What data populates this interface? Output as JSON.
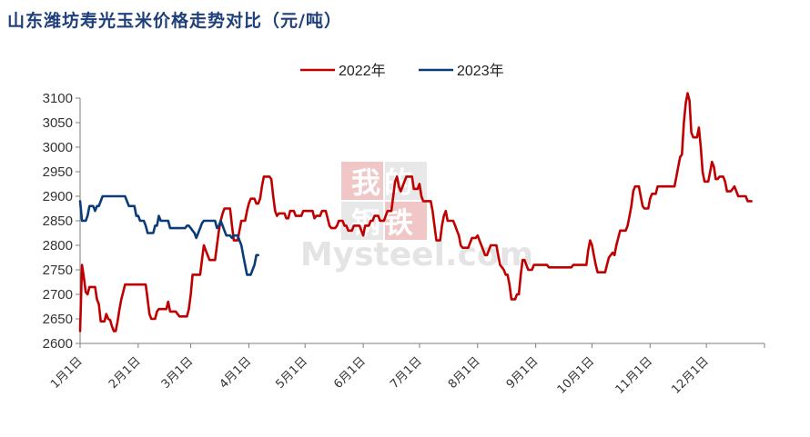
{
  "chart_data": {
    "type": "line",
    "title": "山东潍坊寿光玉米价格走势对比（元/吨）",
    "watermark": [
      "我的",
      "钢铁",
      "Mysteel.com"
    ],
    "ylim": [
      2600,
      3100
    ],
    "yticks": [
      2600,
      2650,
      2700,
      2750,
      2800,
      2850,
      2900,
      2950,
      3000,
      3050,
      3100
    ],
    "xlim": [
      0,
      365
    ],
    "xticks": [
      {
        "label": "1月1日",
        "day": 0
      },
      {
        "label": "2月1日",
        "day": 31
      },
      {
        "label": "3月1日",
        "day": 59
      },
      {
        "label": "4月1日",
        "day": 90
      },
      {
        "label": "5月1日",
        "day": 120
      },
      {
        "label": "6月1日",
        "day": 151
      },
      {
        "label": "7月1日",
        "day": 181
      },
      {
        "label": "8月1日",
        "day": 212
      },
      {
        "label": "9月1日",
        "day": 243
      },
      {
        "label": "10月1日",
        "day": 273
      },
      {
        "label": "11月1日",
        "day": 304
      },
      {
        "label": "12月1日",
        "day": 334
      }
    ],
    "legend_position": "top-center",
    "grid": false,
    "series": [
      {
        "name": "2022年",
        "color": "#c00000",
        "points": [
          [
            0,
            2625
          ],
          [
            1,
            2760
          ],
          [
            2,
            2735
          ],
          [
            3,
            2705
          ],
          [
            4,
            2700
          ],
          [
            5,
            2715
          ],
          [
            8,
            2715
          ],
          [
            9,
            2690
          ],
          [
            10,
            2680
          ],
          [
            11,
            2645
          ],
          [
            13,
            2645
          ],
          [
            14,
            2660
          ],
          [
            15,
            2650
          ],
          [
            16,
            2648
          ],
          [
            17,
            2635
          ],
          [
            18,
            2625
          ],
          [
            19,
            2625
          ],
          [
            20,
            2645
          ],
          [
            21,
            2670
          ],
          [
            22,
            2690
          ],
          [
            23,
            2705
          ],
          [
            24,
            2720
          ],
          [
            35,
            2720
          ],
          [
            36,
            2690
          ],
          [
            37,
            2660
          ],
          [
            38,
            2650
          ],
          [
            40,
            2650
          ],
          [
            41,
            2665
          ],
          [
            42,
            2670
          ],
          [
            46,
            2670
          ],
          [
            47,
            2685
          ],
          [
            48,
            2665
          ],
          [
            51,
            2665
          ],
          [
            52,
            2660
          ],
          [
            53,
            2655
          ],
          [
            57,
            2655
          ],
          [
            58,
            2670
          ],
          [
            59,
            2700
          ],
          [
            60,
            2740
          ],
          [
            64,
            2740
          ],
          [
            65,
            2770
          ],
          [
            66,
            2800
          ],
          [
            67,
            2790
          ],
          [
            69,
            2770
          ],
          [
            72,
            2770
          ],
          [
            73,
            2800
          ],
          [
            74,
            2830
          ],
          [
            75,
            2850
          ],
          [
            76,
            2865
          ],
          [
            77,
            2875
          ],
          [
            80,
            2875
          ],
          [
            81,
            2840
          ],
          [
            82,
            2810
          ],
          [
            84,
            2810
          ],
          [
            85,
            2830
          ],
          [
            86,
            2850
          ],
          [
            88,
            2850
          ],
          [
            89,
            2870
          ],
          [
            90,
            2885
          ],
          [
            91,
            2895
          ],
          [
            93,
            2895
          ],
          [
            94,
            2885
          ],
          [
            95,
            2885
          ],
          [
            96,
            2895
          ],
          [
            97,
            2920
          ],
          [
            98,
            2940
          ],
          [
            101,
            2940
          ],
          [
            102,
            2935
          ],
          [
            103,
            2900
          ],
          [
            104,
            2870
          ],
          [
            105,
            2860
          ],
          [
            106,
            2865
          ],
          [
            109,
            2865
          ],
          [
            110,
            2855
          ],
          [
            111,
            2855
          ],
          [
            112,
            2870
          ],
          [
            114,
            2870
          ],
          [
            115,
            2860
          ],
          [
            118,
            2860
          ],
          [
            119,
            2870
          ],
          [
            124,
            2870
          ],
          [
            125,
            2855
          ],
          [
            126,
            2860
          ],
          [
            128,
            2860
          ],
          [
            129,
            2870
          ],
          [
            131,
            2870
          ],
          [
            132,
            2855
          ],
          [
            133,
            2840
          ],
          [
            134,
            2835
          ],
          [
            136,
            2835
          ],
          [
            137,
            2840
          ],
          [
            138,
            2850
          ],
          [
            140,
            2850
          ],
          [
            141,
            2840
          ],
          [
            142,
            2840
          ],
          [
            143,
            2830
          ],
          [
            145,
            2830
          ],
          [
            146,
            2840
          ],
          [
            149,
            2840
          ],
          [
            150,
            2830
          ],
          [
            151,
            2820
          ],
          [
            152,
            2840
          ],
          [
            154,
            2840
          ],
          [
            155,
            2850
          ],
          [
            156,
            2850
          ],
          [
            157,
            2860
          ],
          [
            159,
            2860
          ],
          [
            160,
            2850
          ],
          [
            162,
            2850
          ],
          [
            163,
            2860
          ],
          [
            164,
            2870
          ],
          [
            166,
            2870
          ],
          [
            167,
            2900
          ],
          [
            168,
            2930
          ],
          [
            169,
            2940
          ],
          [
            170,
            2920
          ],
          [
            171,
            2910
          ],
          [
            172,
            2920
          ],
          [
            173,
            2930
          ],
          [
            174,
            2940
          ],
          [
            177,
            2940
          ],
          [
            178,
            2915
          ],
          [
            180,
            2915
          ],
          [
            181,
            2925
          ],
          [
            182,
            2900
          ],
          [
            183,
            2890
          ],
          [
            187,
            2890
          ],
          [
            188,
            2870
          ],
          [
            189,
            2840
          ],
          [
            190,
            2810
          ],
          [
            192,
            2810
          ],
          [
            193,
            2840
          ],
          [
            194,
            2860
          ],
          [
            195,
            2870
          ],
          [
            196,
            2850
          ],
          [
            199,
            2850
          ],
          [
            200,
            2840
          ],
          [
            201,
            2830
          ],
          [
            202,
            2820
          ],
          [
            203,
            2800
          ],
          [
            204,
            2795
          ],
          [
            207,
            2795
          ],
          [
            208,
            2805
          ],
          [
            209,
            2815
          ],
          [
            211,
            2815
          ],
          [
            212,
            2820
          ],
          [
            213,
            2810
          ],
          [
            214,
            2800
          ],
          [
            215,
            2790
          ],
          [
            216,
            2780
          ],
          [
            217,
            2780
          ],
          [
            218,
            2790
          ],
          [
            219,
            2800
          ],
          [
            222,
            2800
          ],
          [
            223,
            2780
          ],
          [
            224,
            2760
          ],
          [
            225,
            2755
          ],
          [
            226,
            2750
          ],
          [
            227,
            2740
          ],
          [
            228,
            2740
          ],
          [
            229,
            2720
          ],
          [
            230,
            2690
          ],
          [
            232,
            2690
          ],
          [
            233,
            2700
          ],
          [
            234,
            2700
          ],
          [
            235,
            2740
          ],
          [
            236,
            2770
          ],
          [
            237,
            2770
          ],
          [
            238,
            2760
          ],
          [
            239,
            2750
          ],
          [
            241,
            2750
          ],
          [
            242,
            2760
          ],
          [
            249,
            2760
          ],
          [
            250,
            2755
          ],
          [
            262,
            2755
          ],
          [
            263,
            2760
          ],
          [
            270,
            2760
          ],
          [
            271,
            2790
          ],
          [
            272,
            2810
          ],
          [
            273,
            2800
          ],
          [
            274,
            2780
          ],
          [
            275,
            2760
          ],
          [
            276,
            2745
          ],
          [
            280,
            2745
          ],
          [
            281,
            2760
          ],
          [
            282,
            2775
          ],
          [
            284,
            2785
          ],
          [
            285,
            2780
          ],
          [
            286,
            2800
          ],
          [
            287,
            2815
          ],
          [
            288,
            2830
          ],
          [
            291,
            2830
          ],
          [
            292,
            2840
          ],
          [
            293,
            2860
          ],
          [
            294,
            2880
          ],
          [
            295,
            2910
          ],
          [
            296,
            2920
          ],
          [
            298,
            2920
          ],
          [
            299,
            2900
          ],
          [
            300,
            2880
          ],
          [
            301,
            2875
          ],
          [
            303,
            2875
          ],
          [
            304,
            2895
          ],
          [
            305,
            2905
          ],
          [
            307,
            2905
          ],
          [
            308,
            2920
          ],
          [
            317,
            2920
          ],
          [
            318,
            2940
          ],
          [
            319,
            2960
          ],
          [
            320,
            2980
          ],
          [
            321,
            2985
          ],
          [
            322,
            3050
          ],
          [
            323,
            3090
          ],
          [
            324,
            3110
          ],
          [
            325,
            3095
          ],
          [
            326,
            3030
          ],
          [
            327,
            3020
          ],
          [
            329,
            3020
          ],
          [
            330,
            3040
          ],
          [
            331,
            3000
          ],
          [
            332,
            2950
          ],
          [
            333,
            2930
          ],
          [
            335,
            2930
          ],
          [
            336,
            2950
          ],
          [
            337,
            2970
          ],
          [
            338,
            2960
          ],
          [
            339,
            2935
          ],
          [
            340,
            2935
          ],
          [
            341,
            2940
          ],
          [
            343,
            2940
          ],
          [
            344,
            2930
          ],
          [
            345,
            2910
          ],
          [
            347,
            2910
          ],
          [
            348,
            2915
          ],
          [
            349,
            2920
          ],
          [
            350,
            2910
          ],
          [
            351,
            2900
          ],
          [
            355,
            2900
          ],
          [
            356,
            2890
          ],
          [
            358,
            2890
          ]
        ]
      },
      {
        "name": "2023年",
        "color": "#0c3c78",
        "points": [
          [
            0,
            2890
          ],
          [
            1,
            2850
          ],
          [
            3,
            2850
          ],
          [
            4,
            2860
          ],
          [
            5,
            2880
          ],
          [
            7,
            2880
          ],
          [
            8,
            2870
          ],
          [
            9,
            2880
          ],
          [
            10,
            2880
          ],
          [
            11,
            2890
          ],
          [
            12,
            2900
          ],
          [
            24,
            2900
          ],
          [
            25,
            2890
          ],
          [
            26,
            2880
          ],
          [
            29,
            2880
          ],
          [
            30,
            2860
          ],
          [
            31,
            2860
          ],
          [
            32,
            2850
          ],
          [
            34,
            2850
          ],
          [
            35,
            2840
          ],
          [
            36,
            2825
          ],
          [
            39,
            2825
          ],
          [
            40,
            2840
          ],
          [
            41,
            2840
          ],
          [
            42,
            2860
          ],
          [
            43,
            2850
          ],
          [
            47,
            2850
          ],
          [
            48,
            2835
          ],
          [
            56,
            2835
          ],
          [
            57,
            2840
          ],
          [
            58,
            2840
          ],
          [
            59,
            2835
          ],
          [
            60,
            2830
          ],
          [
            61,
            2825
          ],
          [
            62,
            2815
          ],
          [
            63,
            2825
          ],
          [
            64,
            2835
          ],
          [
            65,
            2845
          ],
          [
            66,
            2850
          ],
          [
            72,
            2850
          ],
          [
            73,
            2835
          ],
          [
            74,
            2840
          ],
          [
            75,
            2850
          ],
          [
            76,
            2840
          ],
          [
            77,
            2830
          ],
          [
            78,
            2820
          ],
          [
            80,
            2820
          ],
          [
            81,
            2815
          ],
          [
            82,
            2820
          ],
          [
            84,
            2820
          ],
          [
            85,
            2810
          ],
          [
            86,
            2800
          ],
          [
            87,
            2780
          ],
          [
            88,
            2760
          ],
          [
            89,
            2740
          ],
          [
            91,
            2740
          ],
          [
            92,
            2750
          ],
          [
            93,
            2760
          ],
          [
            94,
            2780
          ],
          [
            95,
            2780
          ]
        ]
      }
    ]
  }
}
